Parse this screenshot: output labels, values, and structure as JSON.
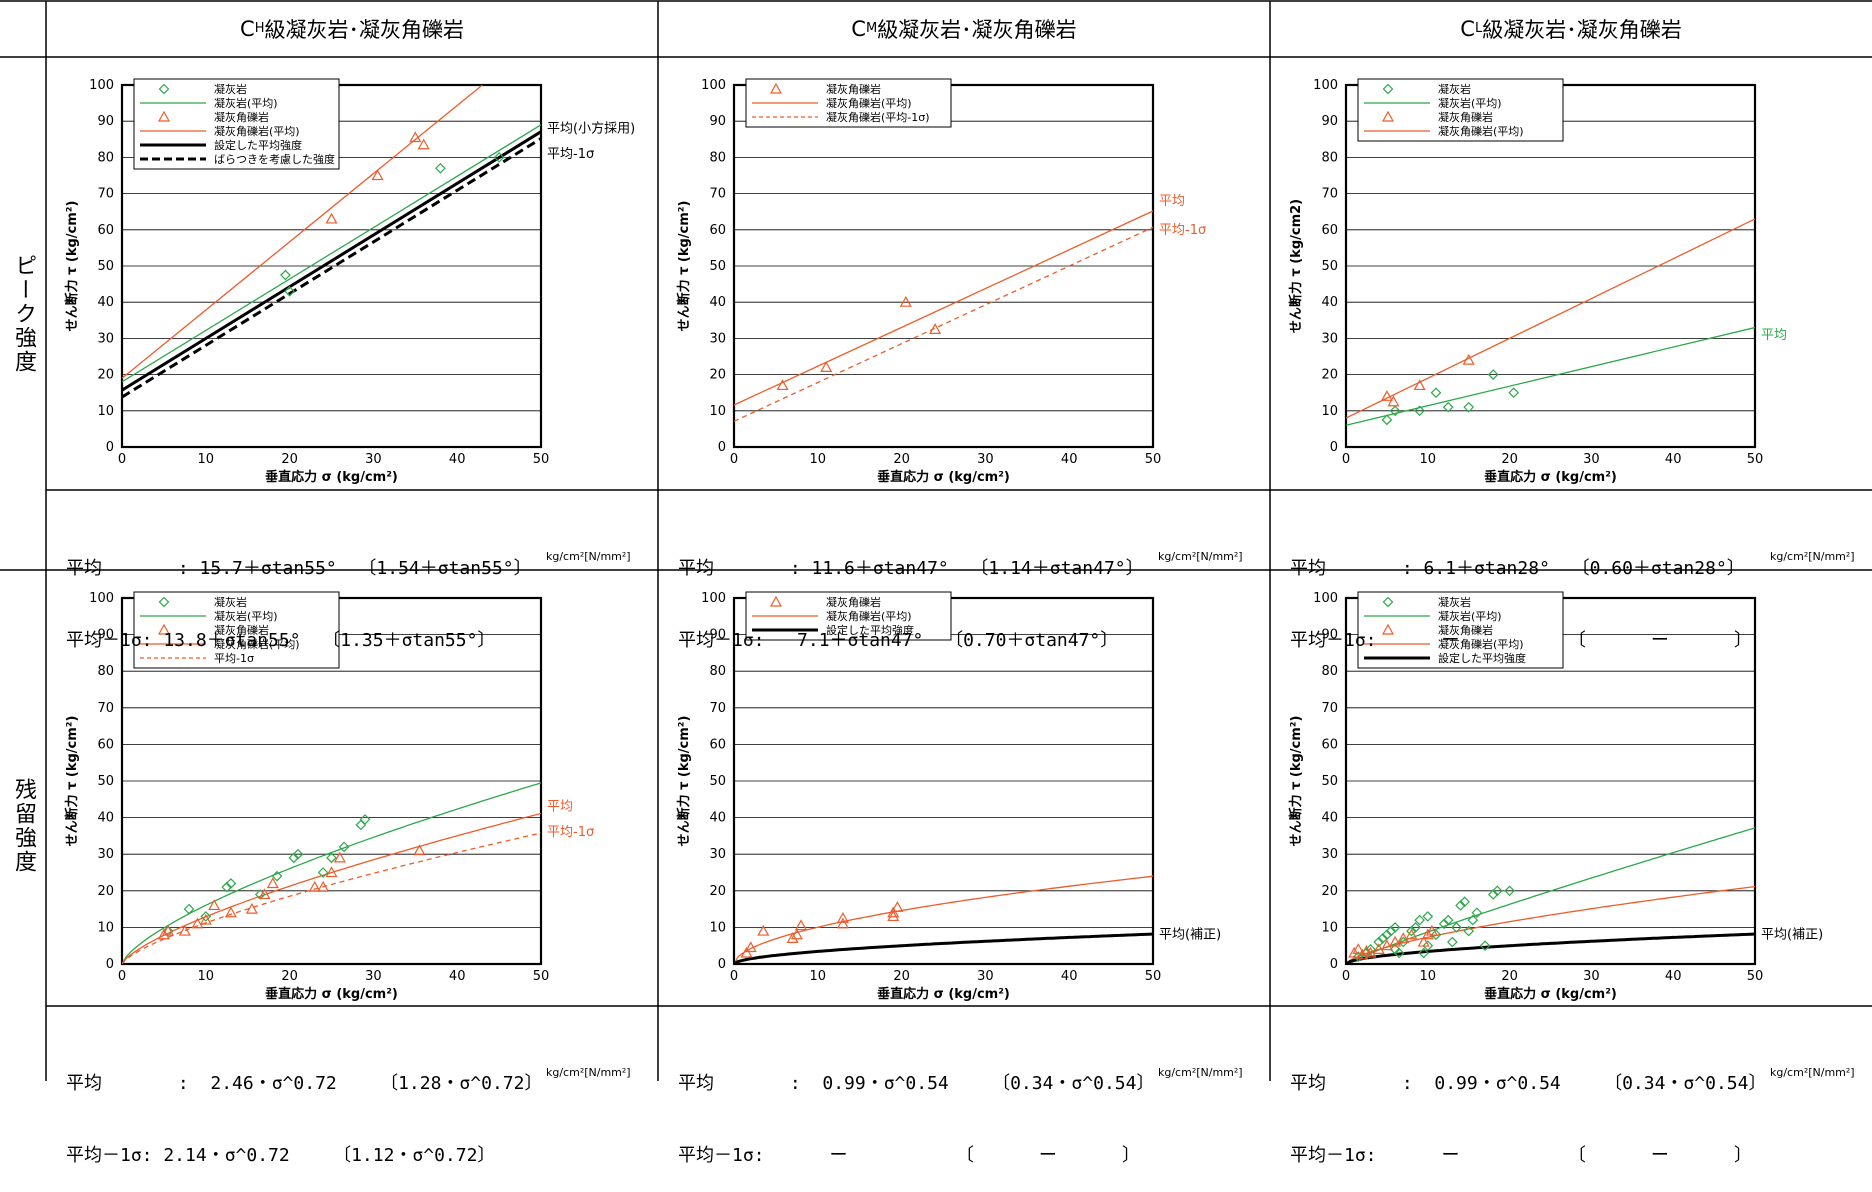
{
  "headers": [
    {
      "pre": "C",
      "sub": "H",
      "post": "級凝灰岩･凝灰角礫岩"
    },
    {
      "pre": "C",
      "sub": "M",
      "post": "級凝灰岩･凝灰角礫岩"
    },
    {
      "pre": "C",
      "sub": "L",
      "post": "級凝灰岩･凝灰角礫岩"
    }
  ],
  "row_labels": {
    "peak": "ピーク強度",
    "residual": "残留強度"
  },
  "unit_label": "kg/cm²[N/mm²]",
  "formulas": {
    "peak": [
      [
        "平均       : 15.7＋σtan55°  〔1.54＋σtan55°〕",
        "平均－1σ: 13.8＋σtan55°  〔1.35＋σtan55°〕"
      ],
      [
        "平均       : 11.6＋σtan47°  〔1.14＋σtan47°〕",
        "平均－1σ:   7.1＋σtan47°  〔0.70＋σtan47°〕"
      ],
      [
        "平均       : 6.1＋σtan28°  〔0.60＋σtan28°〕",
        "平均－1σ:      ー          〔      ー      〕"
      ]
    ],
    "residual": [
      [
        "平均       :  2.46・σ^0.72    〔1.28・σ^0.72〕",
        "平均－1σ: 2.14・σ^0.72    〔1.12・σ^0.72〕"
      ],
      [
        "平均       :  0.99・σ^0.54    〔0.34・σ^0.54〕",
        "平均－1σ:      ー          〔      ー      〕"
      ],
      [
        "平均       :  0.99・σ^0.54    〔0.34・σ^0.54〕",
        "平均－1σ:      ー          〔      ー      〕"
      ]
    ]
  },
  "colors": {
    "tuff": "#2ca84a",
    "breccia": "#ef5b2a",
    "set": "#000000"
  },
  "chart_data": [
    {
      "id": "peak-ch",
      "type": "scatter",
      "xlabel": "垂直応力 σ (kg/cm²)",
      "ylabel": "せん断力 τ (kg/cm²)",
      "xlim": [
        0,
        50
      ],
      "ylim": [
        0,
        100
      ],
      "xticks": [
        0,
        10,
        20,
        30,
        40,
        50
      ],
      "yticks": [
        0,
        10,
        20,
        30,
        40,
        50,
        60,
        70,
        80,
        90,
        100
      ],
      "legend": [
        {
          "type": "diamond",
          "color": "tuff",
          "label": "凝灰岩"
        },
        {
          "type": "line",
          "color": "tuff",
          "label": "凝灰岩(平均)"
        },
        {
          "type": "triangle",
          "color": "breccia",
          "label": "凝灰角礫岩"
        },
        {
          "type": "line",
          "color": "breccia",
          "label": "凝灰角礫岩(平均)"
        },
        {
          "type": "thick",
          "color": "set",
          "label": "設定した平均強度"
        },
        {
          "type": "thickdash",
          "color": "set",
          "label": "ばらつきを考慮した強度"
        }
      ],
      "points": [
        {
          "shape": "diamond",
          "color": "tuff",
          "pts": [
            [
              19.5,
              47.5
            ],
            [
              20,
              43
            ],
            [
              38,
              77
            ],
            [
              45,
              80
            ]
          ]
        },
        {
          "shape": "triangle",
          "color": "breccia",
          "pts": [
            [
              25,
              63
            ],
            [
              30.5,
              75
            ],
            [
              35,
              85.5
            ],
            [
              36,
              83.5
            ]
          ]
        }
      ],
      "lines": [
        {
          "color": "tuff",
          "width": 1.3,
          "dash": "",
          "pts": [
            [
              0,
              18
            ],
            [
              50,
              89
            ]
          ]
        },
        {
          "color": "breccia",
          "width": 1.3,
          "dash": "",
          "pts": [
            [
              0,
              19
            ],
            [
              43,
              100
            ]
          ]
        },
        {
          "color": "set",
          "width": 3,
          "dash": "",
          "pts": [
            [
              0,
              15.7
            ],
            [
              50,
              87.1
            ]
          ]
        },
        {
          "color": "set",
          "width": 3,
          "dash": "9,5",
          "pts": [
            [
              0,
              13.8
            ],
            [
              50,
              85.2
            ]
          ]
        }
      ],
      "annotations": [
        {
          "text": "平均(小方採用)",
          "color": "set",
          "x": 50,
          "y": 88
        },
        {
          "text": "平均-1σ",
          "color": "set",
          "x": 50,
          "y": 81
        }
      ]
    },
    {
      "id": "peak-cm",
      "type": "scatter",
      "xlabel": "垂直応力 σ (kg/cm²)",
      "ylabel": "せん断力 τ (kg/cm²)",
      "xlim": [
        0,
        50
      ],
      "ylim": [
        0,
        100
      ],
      "xticks": [
        0,
        10,
        20,
        30,
        40,
        50
      ],
      "yticks": [
        0,
        10,
        20,
        30,
        40,
        50,
        60,
        70,
        80,
        90,
        100
      ],
      "legend": [
        {
          "type": "triangle",
          "color": "breccia",
          "label": "凝灰角礫岩"
        },
        {
          "type": "line",
          "color": "breccia",
          "label": "凝灰角礫岩(平均)"
        },
        {
          "type": "dash",
          "color": "breccia",
          "label": "凝灰角礫岩(平均-1σ)"
        }
      ],
      "points": [
        {
          "shape": "triangle",
          "color": "breccia",
          "pts": [
            [
              5.8,
              17
            ],
            [
              11,
              22
            ],
            [
              20.5,
              40
            ],
            [
              24,
              32.5
            ]
          ]
        }
      ],
      "lines": [
        {
          "color": "breccia",
          "width": 1.3,
          "dash": "",
          "pts": [
            [
              0,
              11.6
            ],
            [
              50,
              65.2
            ]
          ]
        },
        {
          "color": "breccia",
          "width": 1.3,
          "dash": "5,4",
          "pts": [
            [
              0,
              7.1
            ],
            [
              50,
              60.7
            ]
          ]
        }
      ],
      "annotations": [
        {
          "text": "平均",
          "color": "breccia",
          "x": 50,
          "y": 68
        },
        {
          "text": "平均-1σ",
          "color": "breccia",
          "x": 50,
          "y": 60
        }
      ]
    },
    {
      "id": "peak-cl",
      "type": "scatter",
      "xlabel": "垂直応力 σ (kg/cm²)",
      "ylabel": "せん断力 τ (kg/cm2)",
      "xlim": [
        0,
        50
      ],
      "ylim": [
        0,
        100
      ],
      "xticks": [
        0,
        10,
        20,
        30,
        40,
        50
      ],
      "yticks": [
        0,
        10,
        20,
        30,
        40,
        50,
        60,
        70,
        80,
        90,
        100
      ],
      "legend": [
        {
          "type": "diamond",
          "color": "tuff",
          "label": "凝灰岩"
        },
        {
          "type": "line",
          "color": "tuff",
          "label": "凝灰岩(平均)"
        },
        {
          "type": "triangle",
          "color": "breccia",
          "label": "凝灰角礫岩"
        },
        {
          "type": "line",
          "color": "breccia",
          "label": "凝灰角礫岩(平均)"
        }
      ],
      "points": [
        {
          "shape": "diamond",
          "color": "tuff",
          "pts": [
            [
              5,
              7.5
            ],
            [
              6,
              10
            ],
            [
              9,
              10
            ],
            [
              11,
              15
            ],
            [
              12.5,
              11
            ],
            [
              15,
              11
            ],
            [
              18,
              20
            ],
            [
              20.5,
              15
            ]
          ]
        },
        {
          "shape": "triangle",
          "color": "breccia",
          "pts": [
            [
              5,
              14
            ],
            [
              5.8,
              12.5
            ],
            [
              9,
              17
            ],
            [
              15,
              24
            ]
          ]
        }
      ],
      "lines": [
        {
          "color": "tuff",
          "width": 1.3,
          "dash": "",
          "pts": [
            [
              0,
              6
            ],
            [
              50,
              33
            ]
          ]
        },
        {
          "color": "breccia",
          "width": 1.3,
          "dash": "",
          "pts": [
            [
              0,
              8
            ],
            [
              50,
              63
            ]
          ]
        }
      ],
      "annotations": [
        {
          "text": "平均",
          "color": "tuff",
          "x": 50,
          "y": 31
        }
      ]
    },
    {
      "id": "res-ch",
      "type": "scatter",
      "xlabel": "垂直応力 σ (kg/cm²)",
      "ylabel": "せん断力 τ (kg/cm²)",
      "xlim": [
        0,
        50
      ],
      "ylim": [
        0,
        100
      ],
      "xticks": [
        0,
        10,
        20,
        30,
        40,
        50
      ],
      "yticks": [
        0,
        10,
        20,
        30,
        40,
        50,
        60,
        70,
        80,
        90,
        100
      ],
      "legend": [
        {
          "type": "diamond",
          "color": "tuff",
          "label": "凝灰岩"
        },
        {
          "type": "line",
          "color": "tuff",
          "label": "凝灰岩(平均)"
        },
        {
          "type": "triangle",
          "color": "breccia",
          "label": "凝灰角礫岩"
        },
        {
          "type": "line",
          "color": "breccia",
          "label": "凝灰角礫岩(平均)"
        },
        {
          "type": "dash",
          "color": "breccia",
          "label": "平均-1σ"
        }
      ],
      "points": [
        {
          "shape": "diamond",
          "color": "tuff",
          "pts": [
            [
              5.5,
              9
            ],
            [
              8,
              15
            ],
            [
              10,
              13
            ],
            [
              12.5,
              21
            ],
            [
              13,
              22
            ],
            [
              16.5,
              19
            ],
            [
              18.5,
              24
            ],
            [
              20.5,
              29
            ],
            [
              21,
              30
            ],
            [
              24,
              25
            ],
            [
              25,
              29
            ],
            [
              26.5,
              32
            ],
            [
              28.5,
              38
            ],
            [
              29,
              39.5
            ]
          ]
        },
        {
          "shape": "triangle",
          "color": "breccia",
          "pts": [
            [
              5,
              8
            ],
            [
              5.5,
              9
            ],
            [
              7.5,
              9
            ],
            [
              9,
              11
            ],
            [
              10,
              12
            ],
            [
              11,
              16
            ],
            [
              13,
              14
            ],
            [
              15.5,
              15
            ],
            [
              17,
              19
            ],
            [
              18,
              22
            ],
            [
              23,
              21
            ],
            [
              24,
              21
            ],
            [
              25,
              25
            ],
            [
              26,
              29
            ],
            [
              35.5,
              31
            ]
          ]
        }
      ],
      "curves": [
        {
          "color": "tuff",
          "width": 1.3,
          "dash": "",
          "a": 3.2,
          "b": 0.7
        },
        {
          "color": "breccia",
          "width": 1.3,
          "dash": "",
          "a": 2.46,
          "b": 0.72
        },
        {
          "color": "breccia",
          "width": 1.3,
          "dash": "5,4",
          "a": 2.14,
          "b": 0.72
        }
      ],
      "annotations": [
        {
          "text": "平均",
          "color": "breccia",
          "x": 50,
          "y": 43
        },
        {
          "text": "平均-1σ",
          "color": "breccia",
          "x": 50,
          "y": 36
        }
      ]
    },
    {
      "id": "res-cm",
      "type": "scatter",
      "xlabel": "垂直応力 σ (kg/cm²)",
      "ylabel": "せん断力 τ (kg/cm²)",
      "xlim": [
        0,
        50
      ],
      "ylim": [
        0,
        100
      ],
      "xticks": [
        0,
        10,
        20,
        30,
        40,
        50
      ],
      "yticks": [
        0,
        10,
        20,
        30,
        40,
        50,
        60,
        70,
        80,
        90,
        100
      ],
      "legend": [
        {
          "type": "triangle",
          "color": "breccia",
          "label": "凝灰角礫岩"
        },
        {
          "type": "line",
          "color": "breccia",
          "label": "凝灰角礫岩(平均)"
        },
        {
          "type": "thick",
          "color": "set",
          "label": "設定した平均強度"
        }
      ],
      "points": [
        {
          "shape": "triangle",
          "color": "breccia",
          "pts": [
            [
              1.5,
              3
            ],
            [
              2,
              4.5
            ],
            [
              3.5,
              9
            ],
            [
              7,
              7
            ],
            [
              7.5,
              8
            ],
            [
              8,
              10.5
            ],
            [
              13,
              11
            ],
            [
              13,
              12.5
            ],
            [
              19,
              13
            ],
            [
              19,
              14
            ],
            [
              19.5,
              15.5
            ]
          ]
        }
      ],
      "curves": [
        {
          "color": "breccia",
          "width": 1.3,
          "dash": "",
          "a": 2.9,
          "b": 0.54
        },
        {
          "color": "set",
          "width": 3,
          "dash": "",
          "a": 0.99,
          "b": 0.54
        }
      ],
      "annotations": [
        {
          "text": "平均(補正)",
          "color": "set",
          "x": 50,
          "y": 8
        }
      ]
    },
    {
      "id": "res-cl",
      "type": "scatter",
      "xlabel": "垂直応力 σ (kg/cm²)",
      "ylabel": "せん断力 τ (kg/cm²)",
      "xlim": [
        0,
        50
      ],
      "ylim": [
        0,
        100
      ],
      "xticks": [
        0,
        10,
        20,
        30,
        40,
        50
      ],
      "yticks": [
        0,
        10,
        20,
        30,
        40,
        50,
        60,
        70,
        80,
        90,
        100
      ],
      "legend": [
        {
          "type": "diamond",
          "color": "tuff",
          "label": "凝灰岩"
        },
        {
          "type": "line",
          "color": "tuff",
          "label": "凝灰岩(平均)"
        },
        {
          "type": "triangle",
          "color": "breccia",
          "label": "凝灰角礫岩"
        },
        {
          "type": "line",
          "color": "breccia",
          "label": "凝灰角礫岩(平均)"
        },
        {
          "type": "thick",
          "color": "set",
          "label": "設定した平均強度"
        }
      ],
      "points": [
        {
          "shape": "diamond",
          "color": "tuff",
          "pts": [
            [
              1.5,
              2
            ],
            [
              2.5,
              3
            ],
            [
              3,
              4
            ],
            [
              4,
              6
            ],
            [
              4.5,
              7
            ],
            [
              5,
              8
            ],
            [
              5.5,
              9
            ],
            [
              6,
              10
            ],
            [
              6,
              4
            ],
            [
              6.5,
              3
            ],
            [
              7,
              6
            ],
            [
              8,
              9
            ],
            [
              8.5,
              10
            ],
            [
              9,
              12
            ],
            [
              9.5,
              3
            ],
            [
              10,
              13
            ],
            [
              10,
              5
            ],
            [
              11,
              8
            ],
            [
              12,
              11
            ],
            [
              12.5,
              12
            ],
            [
              13,
              6
            ],
            [
              13.5,
              10
            ],
            [
              14,
              16
            ],
            [
              14.5,
              17
            ],
            [
              15,
              9
            ],
            [
              15.5,
              12
            ],
            [
              16,
              14
            ],
            [
              17,
              5
            ],
            [
              18,
              19
            ],
            [
              18.5,
              20
            ],
            [
              20,
              20
            ]
          ]
        },
        {
          "shape": "triangle",
          "color": "breccia",
          "pts": [
            [
              1,
              3
            ],
            [
              1.5,
              4
            ],
            [
              2,
              2.5
            ],
            [
              2.5,
              3.5
            ],
            [
              3,
              3
            ],
            [
              4,
              4
            ],
            [
              5,
              5
            ],
            [
              6,
              6
            ],
            [
              7,
              7
            ],
            [
              8,
              8
            ],
            [
              9.5,
              6
            ],
            [
              10,
              8
            ],
            [
              10.5,
              9
            ]
          ]
        }
      ],
      "curves": [
        {
          "color": "tuff",
          "width": 1.3,
          "dash": "",
          "a": 1.1,
          "b": 0.9
        },
        {
          "color": "breccia",
          "width": 1.3,
          "dash": "",
          "a": 1.6,
          "b": 0.66
        },
        {
          "color": "set",
          "width": 3,
          "dash": "",
          "a": 0.99,
          "b": 0.54
        }
      ],
      "annotations": [
        {
          "text": "平均(補正)",
          "color": "set",
          "x": 50,
          "y": 8
        }
      ]
    }
  ]
}
